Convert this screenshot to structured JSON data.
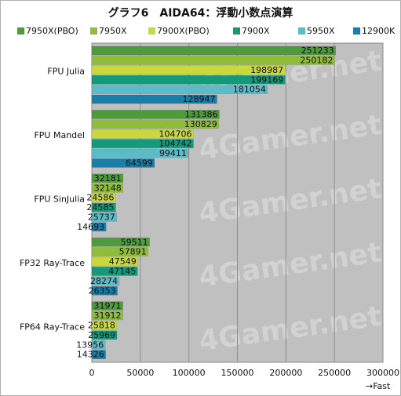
{
  "chart_data": {
    "type": "bar",
    "orientation": "horizontal",
    "title": "グラフ6　AIDA64：浮動小数点演算",
    "categories": [
      "FPU Julia",
      "FPU Mandel",
      "FPU SinJulia",
      "FP32 Ray-Trace",
      "FP64 Ray-Trace"
    ],
    "series": [
      {
        "name": "7950X(PBO)",
        "color": "#4f9a3c",
        "values": [
          251233,
          131386,
          32181,
          59511,
          31971
        ]
      },
      {
        "name": "7950X",
        "color": "#8fbd3a",
        "values": [
          250182,
          130829,
          32148,
          57891,
          31912
        ]
      },
      {
        "name": "7900X(PBO)",
        "color": "#c9d93c",
        "values": [
          198987,
          104706,
          24586,
          47549,
          25818
        ]
      },
      {
        "name": "7900X",
        "color": "#14997a",
        "values": [
          199169,
          104742,
          24585,
          47145,
          25969
        ]
      },
      {
        "name": "5950X",
        "color": "#5bbcc8",
        "values": [
          181054,
          99411,
          25737,
          28274,
          13956
        ]
      },
      {
        "name": "12900K",
        "color": "#1a7fa8",
        "values": [
          128947,
          64599,
          14693,
          26353,
          14326
        ]
      }
    ],
    "xlim": [
      0,
      300000
    ],
    "xticks": [
      "0",
      "50000",
      "100000",
      "150000",
      "200000",
      "250000",
      "300000"
    ],
    "xlabel": "→Fast",
    "grid": true,
    "legend_position": "top",
    "watermark": "4Gamer.net",
    "colors": {
      "plot_background": "#c0c0c0",
      "grid": "#8e8e8e"
    }
  }
}
